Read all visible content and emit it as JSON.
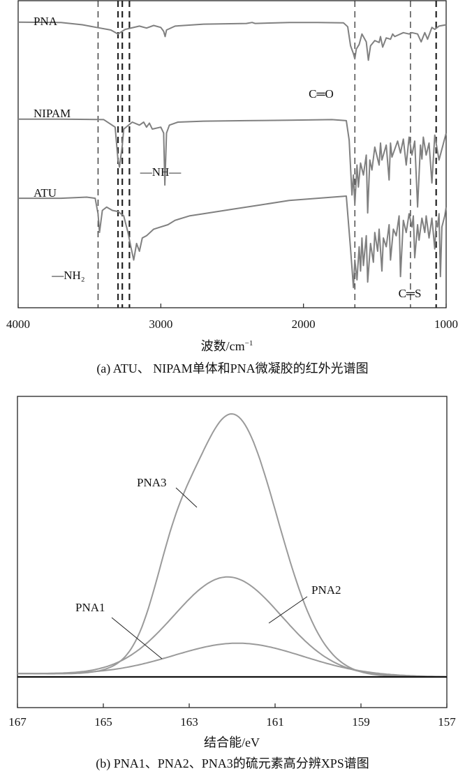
{
  "chart_data": [
    {
      "type": "line",
      "caption": "(a) ATU、 NIPAM单体和PNA微凝胶的红外光谱图",
      "xlabel_main": "波数/cm",
      "xlabel_sup": "−1",
      "xlim": [
        4000,
        1000
      ],
      "x_reversed": true,
      "x_ticks": [
        4000,
        3000,
        2000,
        1000
      ],
      "x_tick_labels": [
        "4000",
        "3000",
        "2000",
        "1000"
      ],
      "series": [
        {
          "name": "PNA",
          "x": [
            4000,
            3700,
            3550,
            3450,
            3350,
            3300,
            3250,
            3150,
            3100,
            3050,
            3000,
            2980,
            2970,
            2960,
            2900,
            2700,
            2400,
            2360,
            2340,
            2100,
            1900,
            1720,
            1690,
            1670,
            1650,
            1640,
            1630,
            1610,
            1590,
            1560,
            1545,
            1530,
            1500,
            1470,
            1460,
            1445,
            1420,
            1390,
            1375,
            1360,
            1300,
            1260,
            1240,
            1200,
            1175,
            1150,
            1130,
            1100,
            1080,
            1050,
            1000
          ],
          "y": [
            0.96,
            0.955,
            0.92,
            0.88,
            0.84,
            0.78,
            0.85,
            0.9,
            0.87,
            0.91,
            0.88,
            0.82,
            0.74,
            0.84,
            0.9,
            0.93,
            0.94,
            0.955,
            0.94,
            0.955,
            0.955,
            0.95,
            0.89,
            0.6,
            0.48,
            0.4,
            0.55,
            0.62,
            0.78,
            0.66,
            0.38,
            0.6,
            0.68,
            0.65,
            0.74,
            0.58,
            0.72,
            0.7,
            0.78,
            0.74,
            0.8,
            0.78,
            0.8,
            0.78,
            0.66,
            0.8,
            0.7,
            0.88,
            0.85,
            0.9,
            0.92
          ]
        },
        {
          "name": "NIPAM",
          "x": [
            4000,
            3700,
            3400,
            3320,
            3300,
            3290,
            3270,
            3260,
            3200,
            3150,
            3120,
            3100,
            3080,
            3060,
            3000,
            2980,
            2972,
            2960,
            2940,
            2880,
            2700,
            2400,
            2100,
            1800,
            1700,
            1680,
            1660,
            1650,
            1640,
            1625,
            1615,
            1600,
            1580,
            1560,
            1550,
            1535,
            1520,
            1500,
            1470,
            1460,
            1450,
            1420,
            1400,
            1390,
            1380,
            1340,
            1320,
            1300,
            1280,
            1260,
            1240,
            1220,
            1200,
            1180,
            1170,
            1160,
            1140,
            1120,
            1100,
            1080,
            1050,
            1000
          ],
          "y": [
            0.96,
            0.96,
            0.955,
            0.88,
            0.55,
            0.48,
            0.7,
            0.86,
            0.93,
            0.9,
            0.93,
            0.88,
            0.92,
            0.86,
            0.88,
            0.82,
            0.3,
            0.82,
            0.9,
            0.93,
            0.94,
            0.945,
            0.95,
            0.955,
            0.945,
            0.75,
            0.2,
            0.4,
            0.1,
            0.5,
            0.28,
            0.52,
            0.4,
            0.6,
            0.02,
            0.55,
            0.45,
            0.68,
            0.5,
            0.72,
            0.55,
            0.7,
            0.35,
            0.72,
            0.58,
            0.74,
            0.62,
            0.76,
            0.5,
            0.78,
            0.6,
            0.74,
            0.08,
            0.7,
            0.56,
            0.78,
            0.6,
            0.72,
            0.32,
            0.8,
            0.55,
            0.82
          ]
        },
        {
          "name": "ATU",
          "x": [
            4000,
            3700,
            3520,
            3460,
            3440,
            3430,
            3410,
            3380,
            3340,
            3300,
            3260,
            3230,
            3210,
            3190,
            3170,
            3150,
            3130,
            3100,
            3050,
            3000,
            2950,
            2900,
            2800,
            2700,
            2500,
            2300,
            2100,
            1900,
            1700,
            1670,
            1650,
            1640,
            1625,
            1610,
            1600,
            1590,
            1580,
            1560,
            1550,
            1530,
            1510,
            1500,
            1480,
            1470,
            1450,
            1440,
            1420,
            1400,
            1390,
            1370,
            1350,
            1330,
            1320,
            1300,
            1280,
            1260,
            1240,
            1230,
            1220,
            1200,
            1190,
            1170,
            1150,
            1140,
            1120,
            1100,
            1080,
            1070,
            1060,
            1050,
            1040,
            1030,
            1010,
            1000
          ],
          "y": [
            0.86,
            0.86,
            0.87,
            0.86,
            0.72,
            0.55,
            0.75,
            0.78,
            0.75,
            0.74,
            0.7,
            0.55,
            0.42,
            0.3,
            0.45,
            0.38,
            0.5,
            0.52,
            0.58,
            0.6,
            0.62,
            0.66,
            0.7,
            0.72,
            0.76,
            0.8,
            0.84,
            0.86,
            0.88,
            0.4,
            0.05,
            0.3,
            0.12,
            0.42,
            0.2,
            0.5,
            0.25,
            0.52,
            0.1,
            0.45,
            0.28,
            0.55,
            0.38,
            0.58,
            0.2,
            0.5,
            0.42,
            0.62,
            0.3,
            0.58,
            0.52,
            0.7,
            0.15,
            0.66,
            0.55,
            0.72,
            0.6,
            0.7,
            0.32,
            0.62,
            0.48,
            0.68,
            0.55,
            0.7,
            0.5,
            0.68,
            0.4,
            0.65,
            0.6,
            0.72,
            0.15,
            0.6,
            0.7,
            0.78
          ]
        }
      ],
      "reference_lines_x": [
        3440,
        3300,
        3270,
        3220,
        1640,
        1250,
        1070
      ],
      "annotations": [
        {
          "text": "C═O",
          "near_x": 1640,
          "row": 0
        },
        {
          "text": "—NH—",
          "near_x": 3220,
          "row": 1
        },
        {
          "text": "—NH₂",
          "near_x": 3440,
          "row": 2
        },
        {
          "text": "C═S",
          "near_x": 1250,
          "row": 2
        }
      ]
    },
    {
      "type": "line",
      "caption": "(b) PNA1、PNA2、PNA3的硫元素高分辨XPS谱图",
      "xlabel": "结合能/eV",
      "xlim": [
        167,
        157
      ],
      "x_reversed": true,
      "x_ticks": [
        167,
        165,
        163,
        161,
        159,
        157
      ],
      "x_tick_labels": [
        "167",
        "165",
        "163",
        "161",
        "159",
        "157"
      ],
      "ylim": [
        0,
        1
      ],
      "series": [
        {
          "name": "PNA3",
          "center": 162.0,
          "amplitude": 0.935,
          "sigma": 1.05,
          "shoulder": {
            "center": 163.4,
            "amplitude": 0.15,
            "sigma": 0.45
          }
        },
        {
          "name": "PNA2",
          "center": 162.1,
          "amplitude": 0.352,
          "sigma": 1.25
        },
        {
          "name": "PNA1",
          "center": 161.85,
          "amplitude": 0.115,
          "sigma": 1.5
        }
      ],
      "series_labels": [
        {
          "text": "PNA3",
          "series": "PNA3"
        },
        {
          "text": "PNA2",
          "series": "PNA2"
        },
        {
          "text": "PNA1",
          "series": "PNA1"
        }
      ]
    }
  ]
}
